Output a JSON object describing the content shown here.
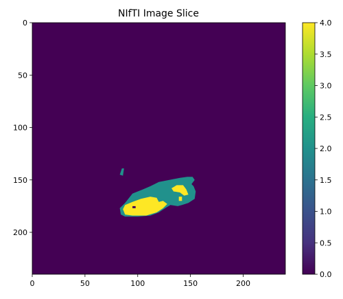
{
  "chart_data": {
    "type": "heatmap",
    "title": "NIfTI Image Slice",
    "xlabel": "",
    "ylabel": "",
    "image_shape": [
      240,
      240
    ],
    "xlim": [
      0,
      240
    ],
    "ylim": [
      240,
      0
    ],
    "x_ticks": [
      0,
      50,
      100,
      150,
      200
    ],
    "y_ticks": [
      0,
      50,
      100,
      150,
      200
    ],
    "colormap": "viridis",
    "background_value": 0,
    "colorbar": {
      "range": [
        0.0,
        4.0
      ],
      "ticks": [
        "0.0",
        "0.5",
        "1.0",
        "1.5",
        "2.0",
        "2.5",
        "3.0",
        "3.5",
        "4.0"
      ]
    },
    "value_colors": {
      "0": "#440154",
      "1": "#3b528b",
      "2": "#21918c",
      "3": "#5ec962",
      "4": "#fde725"
    },
    "regions": [
      {
        "value": 2,
        "outline": [
          [
            88,
            172
          ],
          [
            95,
            163
          ],
          [
            105,
            159
          ],
          [
            112,
            156
          ],
          [
            120,
            152
          ],
          [
            130,
            150
          ],
          [
            140,
            148
          ],
          [
            147,
            147
          ],
          [
            152,
            147
          ],
          [
            154,
            150
          ],
          [
            151,
            154
          ],
          [
            153,
            156
          ],
          [
            155,
            161
          ],
          [
            154,
            168
          ],
          [
            148,
            172
          ],
          [
            142,
            174
          ],
          [
            138,
            175
          ],
          [
            131,
            174
          ],
          [
            126,
            177
          ],
          [
            120,
            181
          ],
          [
            112,
            184
          ],
          [
            100,
            185
          ],
          [
            88,
            185
          ],
          [
            84,
            183
          ],
          [
            83,
            177
          ]
        ]
      },
      {
        "value": 2,
        "outline": [
          [
            83,
            145
          ],
          [
            85,
            139
          ],
          [
            87,
            139
          ],
          [
            86,
            146
          ]
        ]
      },
      {
        "value": 4,
        "outline": [
          [
            88,
            174
          ],
          [
            95,
            171
          ],
          [
            103,
            168
          ],
          [
            112,
            166
          ],
          [
            118,
            167
          ],
          [
            120,
            171
          ],
          [
            124,
            170
          ],
          [
            128,
            173
          ],
          [
            124,
            177
          ],
          [
            118,
            181
          ],
          [
            108,
            184
          ],
          [
            95,
            184
          ],
          [
            88,
            183
          ],
          [
            86,
            178
          ]
        ]
      },
      {
        "value": 4,
        "outline": [
          [
            132,
            158
          ],
          [
            137,
            155
          ],
          [
            143,
            155
          ],
          [
            146,
            159
          ],
          [
            148,
            164
          ],
          [
            144,
            165
          ],
          [
            140,
            162
          ],
          [
            134,
            161
          ]
        ]
      },
      {
        "value": 4,
        "outline": [
          [
            139,
            166
          ],
          [
            142,
            166
          ],
          [
            142,
            170
          ],
          [
            139,
            170
          ]
        ]
      },
      {
        "value": 0,
        "outline": [
          [
            95,
            175
          ],
          [
            98,
            175
          ],
          [
            98,
            177
          ],
          [
            95,
            177
          ]
        ]
      }
    ]
  }
}
